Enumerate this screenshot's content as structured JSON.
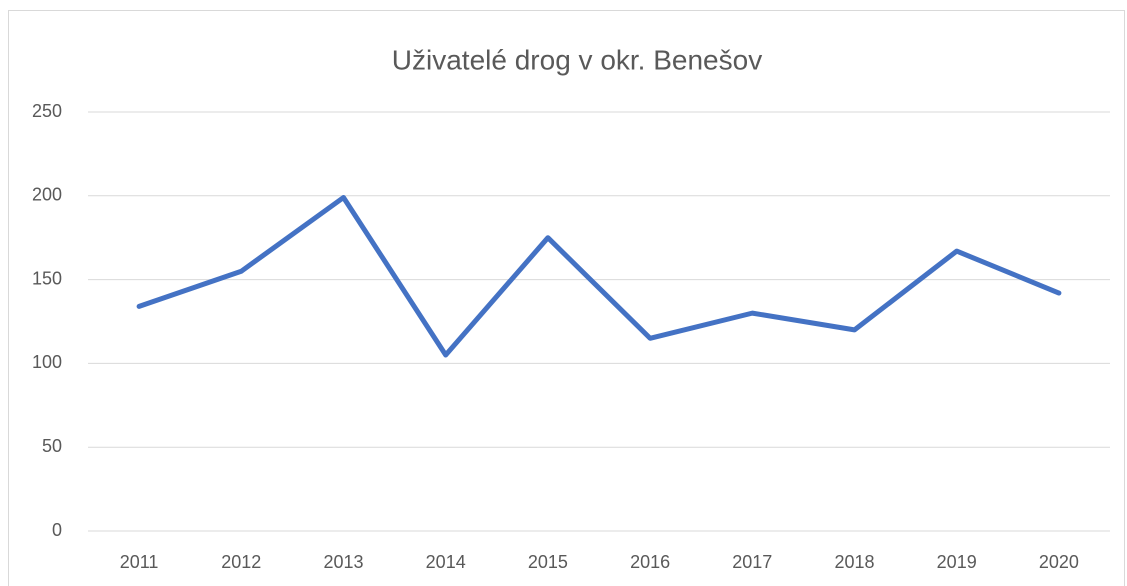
{
  "chart_data": {
    "type": "line",
    "title": "Uživatelé drog v okr. Benešov",
    "categories": [
      "2011",
      "2012",
      "2013",
      "2014",
      "2015",
      "2016",
      "2017",
      "2018",
      "2019",
      "2020"
    ],
    "values": [
      134,
      155,
      199,
      105,
      175,
      115,
      130,
      120,
      167,
      142
    ],
    "color": "#4472c4",
    "ylim": [
      0,
      250
    ],
    "yticks": [
      0,
      50,
      100,
      150,
      200,
      250
    ],
    "grid": true
  }
}
